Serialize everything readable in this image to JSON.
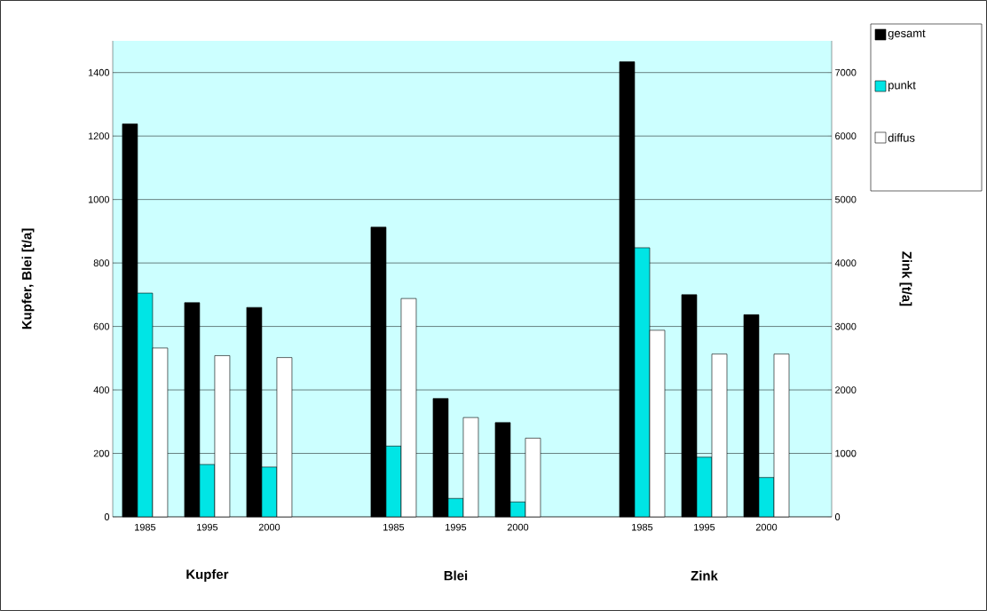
{
  "chart_data": {
    "type": "bar",
    "categories": [
      "1985",
      "1995",
      "2000",
      null,
      "1985",
      "1995",
      "2000",
      null,
      "1985",
      "1995",
      "2000"
    ],
    "series": [
      {
        "name": "gesamt",
        "color": "#000000",
        "values": [
          1238,
          675,
          660,
          null,
          913,
          373,
          297,
          null,
          null,
          null,
          null
        ]
      },
      {
        "name": "punkt",
        "color": "#00e5e5",
        "values": [
          705,
          165,
          157,
          null,
          223,
          58,
          47,
          null,
          null,
          null,
          null
        ]
      },
      {
        "name": "diffus",
        "color": "#ffffff",
        "values": [
          532,
          508,
          502,
          null,
          688,
          313,
          248,
          null,
          null,
          null,
          null
        ]
      },
      {
        "color": "#000000",
        "axis": "y2",
        "values": [
          null,
          null,
          null,
          null,
          null,
          null,
          null,
          null,
          7170,
          3500,
          3185
        ]
      },
      {
        "color": "#00e5e5",
        "axis": "y2",
        "values": [
          null,
          null,
          null,
          null,
          null,
          null,
          null,
          null,
          4240,
          940,
          620
        ]
      },
      {
        "color": "#ffffff",
        "axis": "y2",
        "values": [
          null,
          null,
          null,
          null,
          null,
          null,
          null,
          null,
          2940,
          2565,
          2565
        ]
      }
    ],
    "ylabel": "Kupfer, Blei [t/a]",
    "y2label": "Zink [t/a]",
    "ylim": [
      0,
      1500
    ],
    "yticks": [
      0,
      200,
      400,
      600,
      800,
      1000,
      1200,
      1400
    ],
    "y2lim": [
      0,
      7500
    ],
    "y2ticks": [
      0,
      1000,
      2000,
      3000,
      4000,
      5000,
      6000,
      7000
    ],
    "annotations": [
      "Kupfer",
      "Blei",
      "Zink"
    ],
    "grid": "y",
    "legend": "top right"
  }
}
